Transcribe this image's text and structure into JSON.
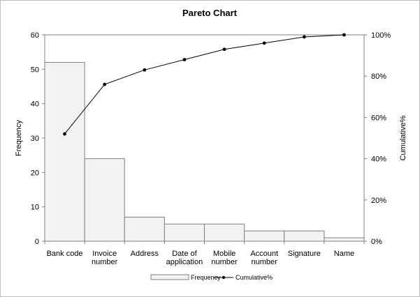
{
  "chart_data": {
    "type": "bar",
    "title": "Pareto Chart",
    "categories": [
      "Bank code",
      "Invoice number",
      "Address",
      "Date of application",
      "Mobile number",
      "Account number",
      "Signature",
      "Name"
    ],
    "category_lines": [
      [
        "Bank code"
      ],
      [
        "Invoice",
        "number"
      ],
      [
        "Address"
      ],
      [
        "Date of",
        "application"
      ],
      [
        "Mobile",
        "number"
      ],
      [
        "Account",
        "number"
      ],
      [
        "Signature"
      ],
      [
        "Name"
      ]
    ],
    "series": [
      {
        "name": "Frequency",
        "type": "bar",
        "axis": "left",
        "values": [
          52,
          24,
          7,
          5,
          5,
          3,
          3,
          1
        ],
        "color": "#f2f2f2"
      },
      {
        "name": "Cumulative%",
        "type": "line",
        "axis": "right",
        "values": [
          52,
          76,
          83,
          88,
          93,
          96,
          99,
          100
        ],
        "color": "#000000"
      }
    ],
    "ylabel": "Frequency",
    "y2label": "Cumulative%",
    "ylim": [
      0,
      60
    ],
    "y2lim": [
      0,
      100
    ],
    "yticks": [
      "0",
      "10",
      "20",
      "30",
      "40",
      "50",
      "60"
    ],
    "y2ticks": [
      "0%",
      "20%",
      "40%",
      "60%",
      "80%",
      "100%"
    ],
    "grid": false,
    "legend": "bottom"
  }
}
